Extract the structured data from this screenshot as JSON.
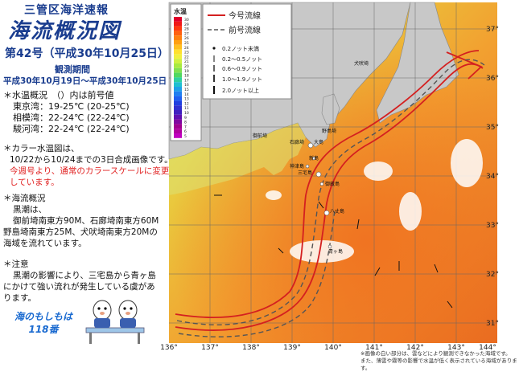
{
  "header": {
    "org": "三管区海洋速報",
    "title": "海流概況図",
    "issue": "第42号（平成30年10月25日）",
    "period_label": "観測期間",
    "period": "平成30年10月19日～平成30年10月25日"
  },
  "temperature": {
    "heading": "＊水温概況　（）内は前号値",
    "bays": [
      {
        "name": "東京湾",
        "value": "19-25℃",
        "prev": "(20-25℃)"
      },
      {
        "name": "相模湾",
        "value": "22-24℃",
        "prev": "(22-24℃)"
      },
      {
        "name": "駿河湾",
        "value": "22-24℃",
        "prev": "(22-24℃)"
      }
    ]
  },
  "color_note": {
    "line1": "＊カラー水温図は、",
    "line2": "10/22から10/24までの3日合成画像です。",
    "red1": "今週号より、通常のカラースケールに変更",
    "red2": "しています。"
  },
  "current": {
    "heading": "＊海流概況",
    "line1": "黒潮は、",
    "line2": "御前埼南東方90M、石廊埼南東方60M",
    "line3": "野島埼南東方25M、犬吠埼南東方20Mの",
    "line4": "海域を流れています。"
  },
  "caution": {
    "heading": "＊注意",
    "line1": "黒潮の影響により、三宅島から青ヶ島",
    "line2": "にかけて強い流れが発生している虞があ",
    "line3": "ります。"
  },
  "mascot": {
    "line1": "海のもしもは",
    "line2": "118番"
  },
  "map": {
    "lon_ticks": [
      "136°",
      "137°",
      "138°",
      "139°",
      "140°",
      "141°",
      "142°",
      "143°",
      "144°"
    ],
    "lat_ticks": [
      "37°",
      "36°",
      "35°",
      "34°",
      "33°",
      "32°",
      "31°"
    ],
    "scale_title": "水温",
    "scale_values": [
      "30",
      "29",
      "28",
      "27",
      "26",
      "25",
      "24",
      "23",
      "22",
      "21",
      "20",
      "19",
      "18",
      "17",
      "16",
      "15",
      "14",
      "13",
      "12",
      "11",
      "10",
      "9",
      "8",
      "7",
      "6",
      "5"
    ],
    "legend": {
      "current_line": "今号流線",
      "previous_line": "前号流線",
      "speeds": [
        "0.2ノット未満",
        "0.2～0.5ノット",
        "0.6～0.9ノット",
        "1.0～1.9ノット",
        "2.0ノット以上"
      ]
    },
    "places": {
      "oshima": "大島",
      "niijima": "新島",
      "kozushima": "神津島",
      "miyake": "三宅島",
      "mikura": "御蔵島",
      "hachijo": "八丈島",
      "aogashima": "青ヶ島",
      "inubo": "犬吠埼",
      "nojima": "野島埼",
      "omaezaki": "御前埼",
      "iro": "石廊埼"
    },
    "notes": {
      "line1": "※画像の白い部分は、雲などにより観測できなかった海域です。",
      "line2": "また、薄雲や霧等の影響で水温が低く表示されている海域があります。"
    },
    "colors": {
      "current": "#d42020",
      "previous": "#555555",
      "land": "#c8c8c8"
    }
  }
}
